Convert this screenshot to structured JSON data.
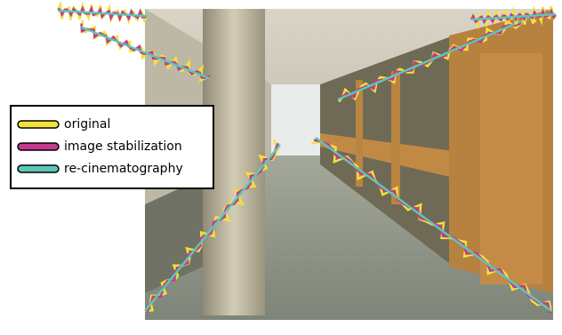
{
  "legend": {
    "items": [
      {
        "label": "original",
        "color": "#f2e23a"
      },
      {
        "label": "image stabilization",
        "color": "#c43a8e"
      },
      {
        "label": "re-cinematography",
        "color": "#5cc6b6"
      }
    ]
  }
}
